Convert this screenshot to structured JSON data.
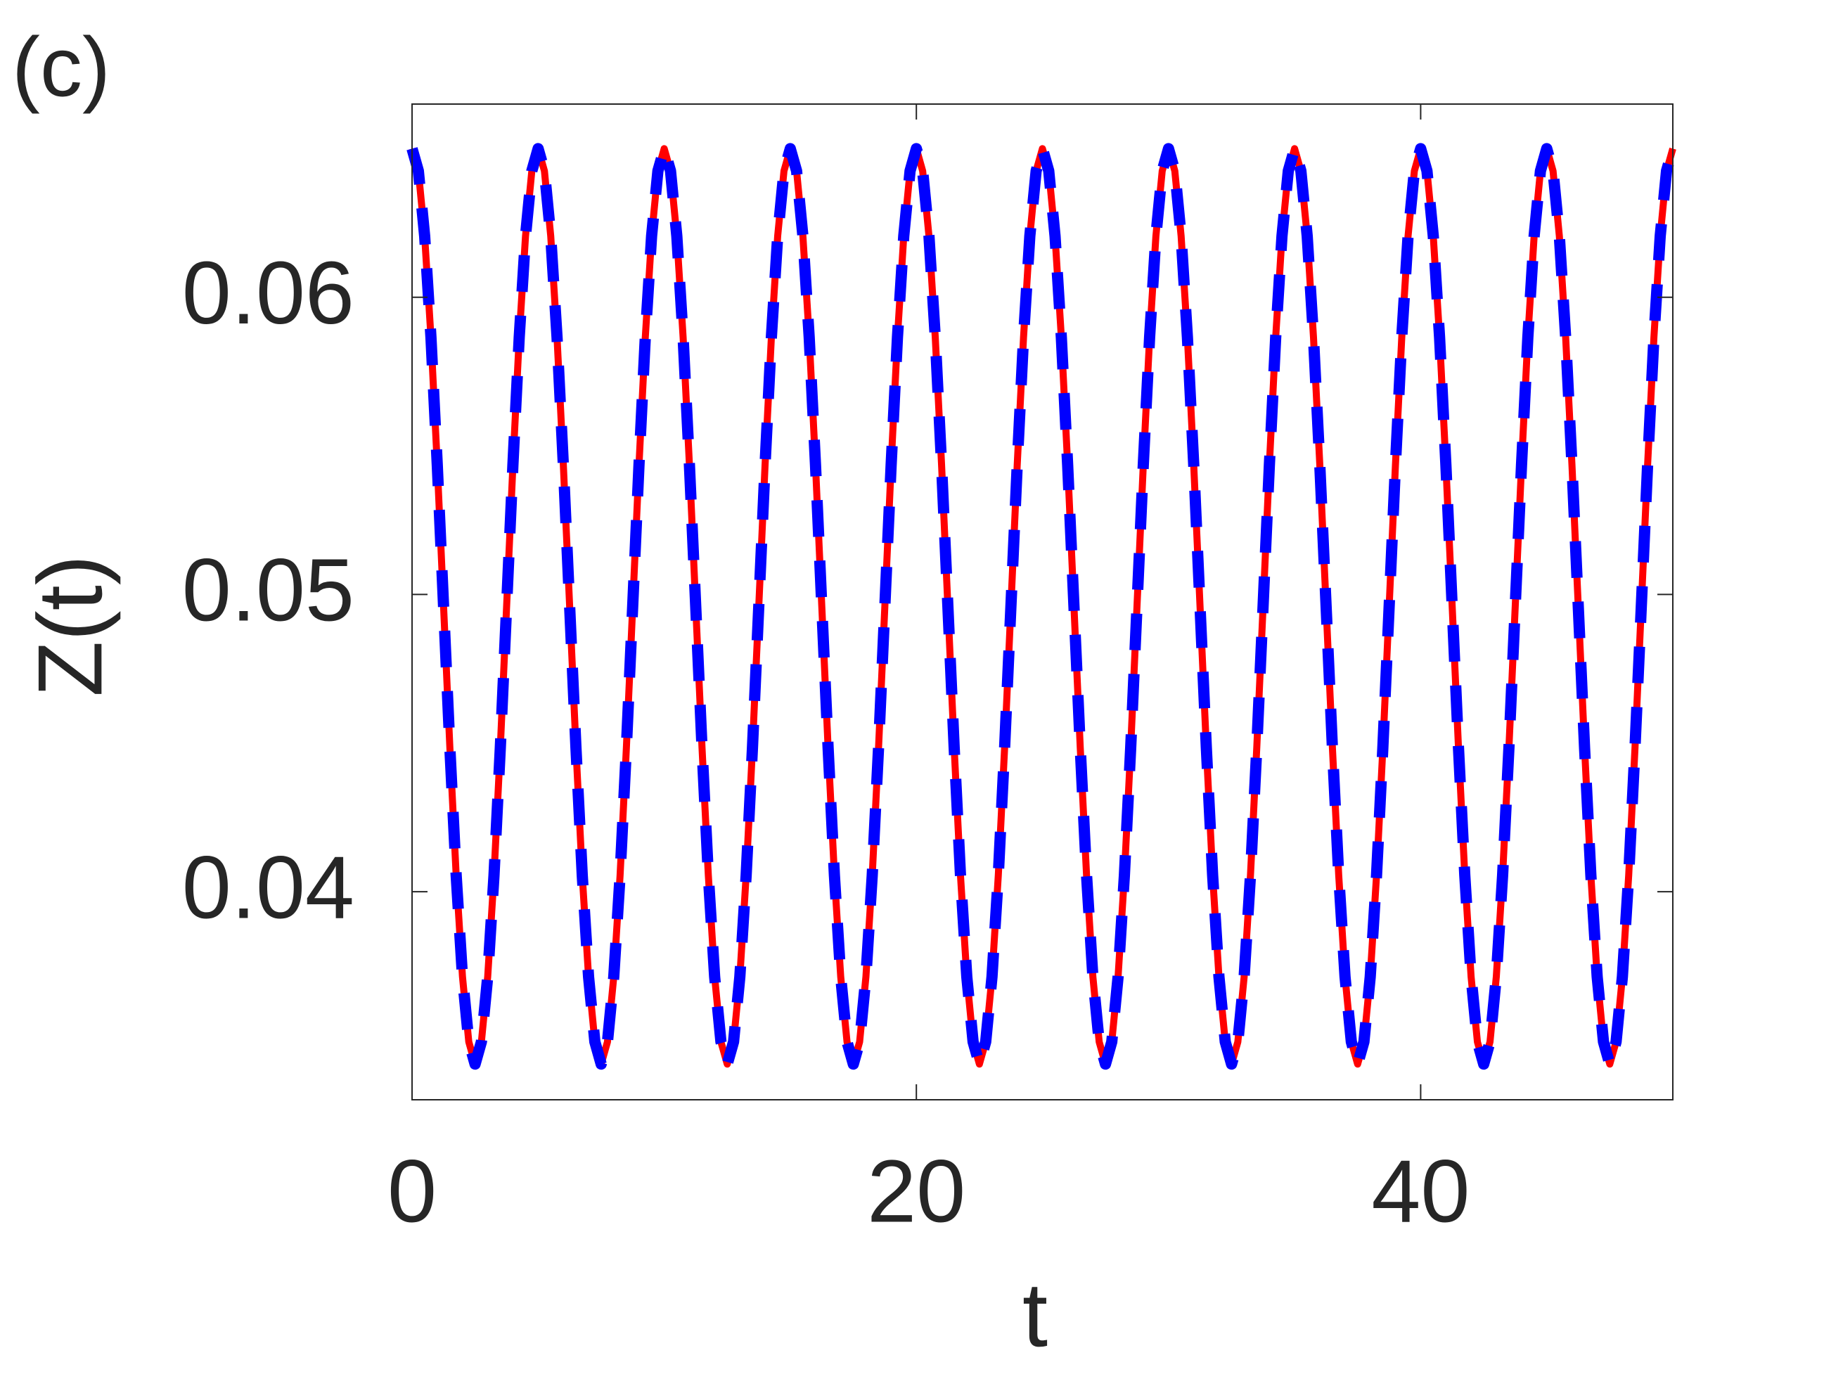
{
  "chart_data": {
    "type": "line",
    "panel_label": "(c)",
    "x_label": "t",
    "y_label": "Z(t)",
    "xlim": [
      0,
      50
    ],
    "xticks": [
      0,
      20,
      40
    ],
    "ylim": [
      0.033,
      0.0665
    ],
    "yticks": [
      0.04,
      0.05,
      0.06
    ],
    "grid": false,
    "x": [
      0,
      0.25,
      0.5,
      0.75,
      1,
      1.25,
      1.5,
      1.75,
      2,
      2.25,
      2.5,
      2.75,
      3,
      3.25,
      3.5,
      3.75,
      4,
      4.25,
      4.5,
      4.75,
      5,
      5.25,
      5.5,
      5.75,
      6,
      6.25,
      6.5,
      6.75,
      7,
      7.25,
      7.5,
      7.75,
      8,
      8.25,
      8.5,
      8.75,
      9,
      9.25,
      9.5,
      9.75,
      10,
      10.25,
      10.5,
      10.75,
      11,
      11.25,
      11.5,
      11.75,
      12,
      12.25,
      12.5,
      12.75,
      13,
      13.25,
      13.5,
      13.75,
      14,
      14.25,
      14.5,
      14.75,
      15,
      15.25,
      15.5,
      15.75,
      16,
      16.25,
      16.5,
      16.75,
      17,
      17.25,
      17.5,
      17.75,
      18,
      18.25,
      18.5,
      18.75,
      19,
      19.25,
      19.5,
      19.75,
      20,
      20.25,
      20.5,
      20.75,
      21,
      21.25,
      21.5,
      21.75,
      22,
      22.25,
      22.5,
      22.75,
      23,
      23.25,
      23.5,
      23.75,
      24,
      24.25,
      24.5,
      24.75,
      25,
      25.25,
      25.5,
      25.75,
      26,
      26.25,
      26.5,
      26.75,
      27,
      27.25,
      27.5,
      27.75,
      28,
      28.25,
      28.5,
      28.75,
      29,
      29.25,
      29.5,
      29.75,
      30,
      30.25,
      30.5,
      30.75,
      31,
      31.25,
      31.5,
      31.75,
      32,
      32.25,
      32.5,
      32.75,
      33,
      33.25,
      33.5,
      33.75,
      34,
      34.25,
      34.5,
      34.75,
      35,
      35.25,
      35.5,
      35.75,
      36,
      36.25,
      36.5,
      36.75,
      37,
      37.25,
      37.5,
      37.75,
      38,
      38.25,
      38.5,
      38.75,
      39,
      39.25,
      39.5,
      39.75,
      40,
      40.25,
      40.5,
      40.75,
      41,
      41.25,
      41.5,
      41.75,
      42,
      42.25,
      42.5,
      42.75,
      43,
      43.25,
      43.5,
      43.75,
      44,
      44.25,
      44.5,
      44.75,
      45,
      45.25,
      45.5,
      45.75,
      46,
      46.25,
      46.5,
      46.75,
      47,
      47.25,
      47.5,
      47.75,
      48,
      48.25,
      48.5,
      48.75,
      49,
      49.25,
      49.5,
      49.75,
      50
    ],
    "series": [
      {
        "color": "#ff0000",
        "dashed": false,
        "values": [
          0.065,
          0.06425,
          0.06206,
          0.05865,
          0.05436,
          0.0496,
          0.04484,
          0.04055,
          0.03714,
          0.03495,
          0.0342,
          0.03495,
          0.03714,
          0.04055,
          0.04484,
          0.0496,
          0.05436,
          0.05865,
          0.06206,
          0.06425,
          0.065,
          0.06425,
          0.06206,
          0.05865,
          0.05436,
          0.0496,
          0.04484,
          0.04055,
          0.03714,
          0.03495,
          0.0342,
          0.03495,
          0.03714,
          0.04055,
          0.04484,
          0.0496,
          0.05436,
          0.05865,
          0.06206,
          0.06425,
          0.065,
          0.06425,
          0.06206,
          0.05865,
          0.05436,
          0.0496,
          0.04484,
          0.04055,
          0.03714,
          0.03495,
          0.0342,
          0.03495,
          0.03714,
          0.04055,
          0.04484,
          0.0496,
          0.05436,
          0.05865,
          0.06206,
          0.06425,
          0.065,
          0.06425,
          0.06206,
          0.05865,
          0.05436,
          0.0496,
          0.04484,
          0.04055,
          0.03714,
          0.03495,
          0.0342,
          0.03495,
          0.03714,
          0.04055,
          0.04484,
          0.0496,
          0.05436,
          0.05865,
          0.06206,
          0.06425,
          0.065,
          0.06425,
          0.06206,
          0.05865,
          0.05436,
          0.0496,
          0.04484,
          0.04055,
          0.03714,
          0.03495,
          0.0342,
          0.03495,
          0.03714,
          0.04055,
          0.04484,
          0.0496,
          0.05436,
          0.05865,
          0.06206,
          0.06425,
          0.065,
          0.06425,
          0.06206,
          0.05865,
          0.05436,
          0.0496,
          0.04484,
          0.04055,
          0.03714,
          0.03495,
          0.0342,
          0.03495,
          0.03714,
          0.04055,
          0.04484,
          0.0496,
          0.05436,
          0.05865,
          0.06206,
          0.06425,
          0.065,
          0.06425,
          0.06206,
          0.05865,
          0.05436,
          0.0496,
          0.04484,
          0.04055,
          0.03714,
          0.03495,
          0.0342,
          0.03495,
          0.03714,
          0.04055,
          0.04484,
          0.0496,
          0.05436,
          0.05865,
          0.06206,
          0.06425,
          0.065,
          0.06425,
          0.06206,
          0.05865,
          0.05436,
          0.0496,
          0.04484,
          0.04055,
          0.03714,
          0.03495,
          0.0342,
          0.03495,
          0.03714,
          0.04055,
          0.04484,
          0.0496,
          0.05436,
          0.05865,
          0.06206,
          0.06425,
          0.065,
          0.06425,
          0.06206,
          0.05865,
          0.05436,
          0.0496,
          0.04484,
          0.04055,
          0.03714,
          0.03495,
          0.0342,
          0.03495,
          0.03714,
          0.04055,
          0.04484,
          0.0496,
          0.05436,
          0.05865,
          0.06206,
          0.06425,
          0.065,
          0.06425,
          0.06206,
          0.05865,
          0.05436,
          0.0496,
          0.04484,
          0.04055,
          0.03714,
          0.03495,
          0.0342,
          0.03495,
          0.03714,
          0.04055,
          0.04484,
          0.0496,
          0.05436,
          0.05865,
          0.06206,
          0.06425,
          0.065
        ]
      },
      {
        "color": "#0000ff",
        "dashed": true,
        "values": [
          0.065,
          0.06425,
          0.06206,
          0.05865,
          0.05436,
          0.0496,
          0.04484,
          0.04055,
          0.03714,
          0.03495,
          0.0342,
          0.03495,
          0.03714,
          0.04055,
          0.04484,
          0.0496,
          0.05436,
          0.05865,
          0.06206,
          0.06425,
          0.065,
          0.06425,
          0.06206,
          0.05865,
          0.05436,
          0.0496,
          0.04484,
          0.04055,
          0.03714,
          0.03495,
          0.0342,
          0.03495,
          0.03714,
          0.04055,
          0.04484,
          0.0496,
          0.05436,
          0.05865,
          0.06206,
          0.06425,
          0.065,
          0.06425,
          0.06206,
          0.05865,
          0.05436,
          0.0496,
          0.04484,
          0.04055,
          0.03714,
          0.03495,
          0.0342,
          0.03495,
          0.03714,
          0.04055,
          0.04484,
          0.0496,
          0.05436,
          0.05865,
          0.06206,
          0.06425,
          0.065,
          0.06425,
          0.06206,
          0.05865,
          0.05436,
          0.0496,
          0.04484,
          0.04055,
          0.03714,
          0.03495,
          0.0342,
          0.03495,
          0.03714,
          0.04055,
          0.04484,
          0.0496,
          0.05436,
          0.05865,
          0.06206,
          0.06425,
          0.065,
          0.06425,
          0.06206,
          0.05865,
          0.05436,
          0.0496,
          0.04484,
          0.04055,
          0.03714,
          0.03495,
          0.0342,
          0.03495,
          0.03714,
          0.04055,
          0.04484,
          0.0496,
          0.05436,
          0.05865,
          0.06206,
          0.06425,
          0.065,
          0.06425,
          0.06206,
          0.05865,
          0.05436,
          0.0496,
          0.04484,
          0.04055,
          0.03714,
          0.03495,
          0.0342,
          0.03495,
          0.03714,
          0.04055,
          0.04484,
          0.0496,
          0.05436,
          0.05865,
          0.06206,
          0.06425,
          0.065,
          0.06425,
          0.06206,
          0.05865,
          0.05436,
          0.0496,
          0.04484,
          0.04055,
          0.03714,
          0.03495,
          0.0342,
          0.03495,
          0.03714,
          0.04055,
          0.04484,
          0.0496,
          0.05436,
          0.05865,
          0.06206,
          0.06425,
          0.065,
          0.06425,
          0.06206,
          0.05865,
          0.05436,
          0.0496,
          0.04484,
          0.04055,
          0.03714,
          0.03495,
          0.0342,
          0.03495,
          0.03714,
          0.04055,
          0.04484,
          0.0496,
          0.05436,
          0.05865,
          0.06206,
          0.06425,
          0.065,
          0.06425,
          0.06206,
          0.05865,
          0.05436,
          0.0496,
          0.04484,
          0.04055,
          0.03714,
          0.03495,
          0.0342,
          0.03495,
          0.03714,
          0.04055,
          0.04484,
          0.0496,
          0.05436,
          0.05865,
          0.06206,
          0.06425,
          0.065,
          0.06425,
          0.06206,
          0.05865,
          0.05436,
          0.0496,
          0.04484,
          0.04055,
          0.03714,
          0.03495,
          0.0342,
          0.03495,
          0.03714,
          0.04055,
          0.04484,
          0.0496,
          0.05436,
          0.05865,
          0.06206,
          0.06425,
          0.065
        ]
      }
    ]
  }
}
